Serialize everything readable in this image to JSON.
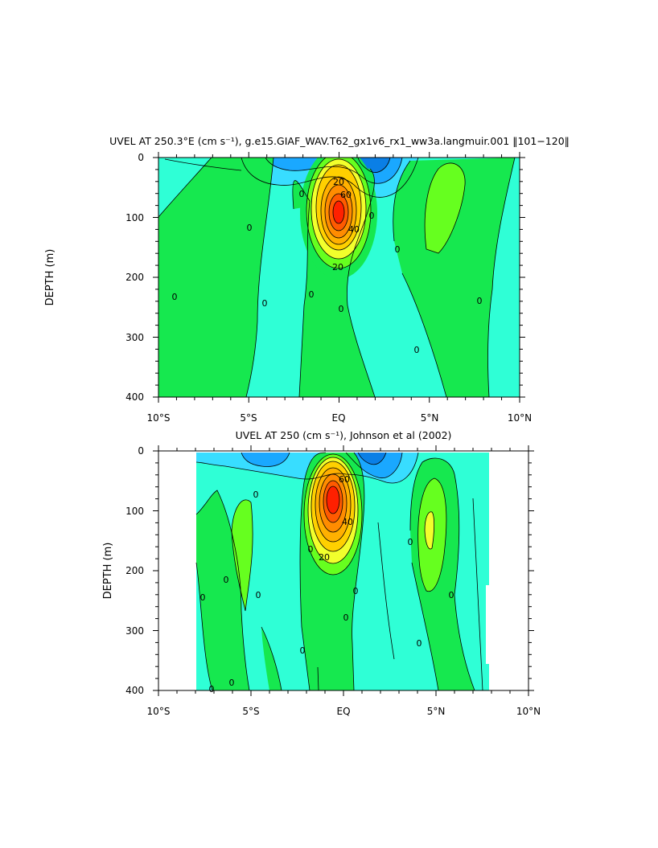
{
  "chart_data": [
    {
      "type": "contour",
      "title": "UVEL AT 250.3°E (cm s⁻¹), g.e15.GIAF_WAV.T62_gx1v6_rx1_ww3a.langmuir.001 ‖101−120‖",
      "ylabel": "DEPTH (m)",
      "xlabel": "",
      "x_range": [
        -10,
        10
      ],
      "y_range": [
        400,
        0
      ],
      "x_ticks": [
        -10,
        -5,
        0,
        5,
        10
      ],
      "x_tick_labels": [
        "10°S",
        "5°S",
        "EQ",
        "5°N",
        "10°N"
      ],
      "y_ticks": [
        0,
        100,
        200,
        300,
        400
      ],
      "y_tick_labels": [
        "0",
        "100",
        "200",
        "300",
        "400"
      ],
      "contour_labels": [
        "20",
        "60",
        "40",
        "20",
        "0",
        "0",
        "0",
        "0",
        "0",
        "0",
        "0",
        "0",
        "0",
        "0"
      ],
      "core": {
        "lat": 0.0,
        "depth": 90,
        "max_speed": 80
      },
      "colors": [
        "#0a7fe6",
        "#1aa8ff",
        "#38ddff",
        "#2fffd6",
        "#16e84f",
        "#66ff1f",
        "#f2ff2c",
        "#ffd000",
        "#ff9900",
        "#ff6000",
        "#ff2500"
      ]
    },
    {
      "type": "contour",
      "title": "UVEL AT 250 (cm s⁻¹), Johnson et al (2002)",
      "ylabel": "DEPTH (m)",
      "xlabel": "",
      "x_range": [
        -10,
        10
      ],
      "y_range": [
        400,
        0
      ],
      "x_ticks": [
        -10,
        -5,
        0,
        5,
        10
      ],
      "x_tick_labels": [
        "10°S",
        "5°S",
        "EQ",
        "5°N",
        "10°N"
      ],
      "y_ticks": [
        0,
        100,
        200,
        300,
        400
      ],
      "y_tick_labels": [
        "0",
        "100",
        "200",
        "300",
        "400"
      ],
      "contour_labels": [
        "60",
        "40",
        "20",
        "0",
        "0",
        "0",
        "0",
        "0",
        "0",
        "0",
        "0",
        "0",
        "0",
        "0",
        "0",
        "0"
      ],
      "data_extent_lat": [
        -8,
        8.3
      ],
      "core": {
        "lat": -0.2,
        "depth": 75,
        "max_speed": 80
      },
      "colors": [
        "#0a7fe6",
        "#1aa8ff",
        "#38ddff",
        "#2fffd6",
        "#16e84f",
        "#66ff1f",
        "#f2ff2c",
        "#ffd000",
        "#ff9900",
        "#ff6000",
        "#ff2500"
      ]
    }
  ]
}
